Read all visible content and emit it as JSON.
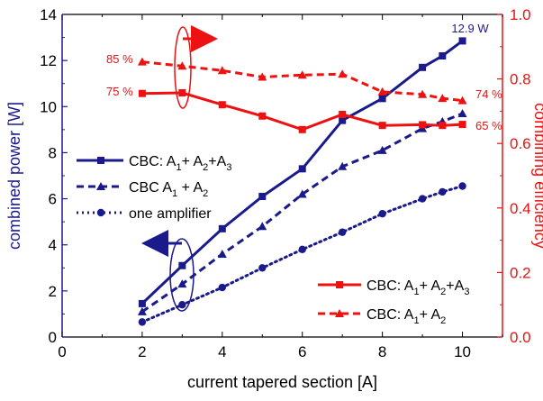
{
  "chart_data": {
    "type": "line",
    "xlabel": "current tapered section [A]",
    "xlim": [
      0,
      11
    ],
    "x_ticks": [
      "0",
      "2",
      "4",
      "6",
      "8",
      "10"
    ],
    "left_axis": {
      "label": "combined power [W]",
      "ylim": [
        0,
        14
      ],
      "ticks": [
        "0",
        "2",
        "4",
        "6",
        "8",
        "10",
        "12",
        "14"
      ],
      "color": "#1a1a8c"
    },
    "right_axis": {
      "label": "combining efficiency",
      "ylim": [
        0,
        1
      ],
      "ticks": [
        "0.0",
        "0.2",
        "0.4",
        "0.6",
        "0.8",
        "1.0"
      ],
      "color": "#ee1111"
    },
    "series": [
      {
        "name": "CBC: A1 + A2+A3",
        "axis": "left",
        "dash": "solid",
        "marker": "square",
        "x": [
          2,
          3,
          4,
          5,
          6,
          7,
          8,
          9,
          9.5,
          10
        ],
        "values": [
          1.45,
          3.1,
          4.7,
          6.1,
          7.3,
          9.4,
          10.35,
          11.7,
          12.2,
          12.85
        ]
      },
      {
        "name": "CBC A1 + A2",
        "axis": "left",
        "dash": "dashed",
        "marker": "triangle",
        "x": [
          2,
          3,
          4,
          5,
          6,
          7,
          8,
          9,
          9.5,
          10
        ],
        "values": [
          1.1,
          2.3,
          3.6,
          4.8,
          6.2,
          7.4,
          8.1,
          9.05,
          9.35,
          9.7
        ]
      },
      {
        "name": "one amplifier",
        "axis": "left",
        "dash": "dotted",
        "marker": "circle",
        "x": [
          2,
          3,
          4,
          5,
          6,
          7,
          8,
          9,
          9.5,
          10
        ],
        "values": [
          0.65,
          1.4,
          2.15,
          3.0,
          3.8,
          4.55,
          5.35,
          6.0,
          6.3,
          6.55
        ]
      },
      {
        "name": "CBC: A1 + A2+A3",
        "axis": "right",
        "dash": "solid",
        "marker": "square",
        "x": [
          2,
          3,
          4,
          5,
          6,
          7,
          8,
          9,
          9.5,
          10
        ],
        "values": [
          0.755,
          0.757,
          0.72,
          0.685,
          0.643,
          0.69,
          0.656,
          0.658,
          0.656,
          0.659
        ]
      },
      {
        "name": "CBC: A1 + A2",
        "axis": "right",
        "dash": "dashed",
        "marker": "triangle",
        "x": [
          2,
          3,
          4,
          5,
          6,
          7,
          8,
          9,
          9.5,
          10
        ],
        "values": [
          0.853,
          0.84,
          0.826,
          0.806,
          0.812,
          0.815,
          0.76,
          0.752,
          0.74,
          0.733
        ]
      }
    ],
    "annotations": [
      {
        "text": "12.9 W",
        "color": "#1a1a8c"
      },
      {
        "text": "85 %",
        "color": "#ee1111"
      },
      {
        "text": "75 %",
        "color": "#ee1111"
      },
      {
        "text": "74 %",
        "color": "#ee1111"
      },
      {
        "text": "65 %",
        "color": "#ee1111"
      }
    ],
    "legend_left": [
      {
        "main": "CBC: A",
        "s1": "1",
        "mid1": "+ A",
        "s2": "2",
        "mid2": "+A",
        "s3": "3"
      },
      {
        "main": "CBC A",
        "s1": "1",
        "mid1": " + A",
        "s2": "2"
      },
      {
        "main": "one amplifier"
      }
    ],
    "legend_right": [
      {
        "main": "CBC: A",
        "s1": "1",
        "mid1": "+ A",
        "s2": "2",
        "mid2": "+A",
        "s3": "3"
      },
      {
        "main": "CBC: A",
        "s1": "1",
        "mid1": "+ A",
        "s2": "2"
      }
    ],
    "grid": false,
    "legend_position": "left-middle and bottom-right"
  }
}
